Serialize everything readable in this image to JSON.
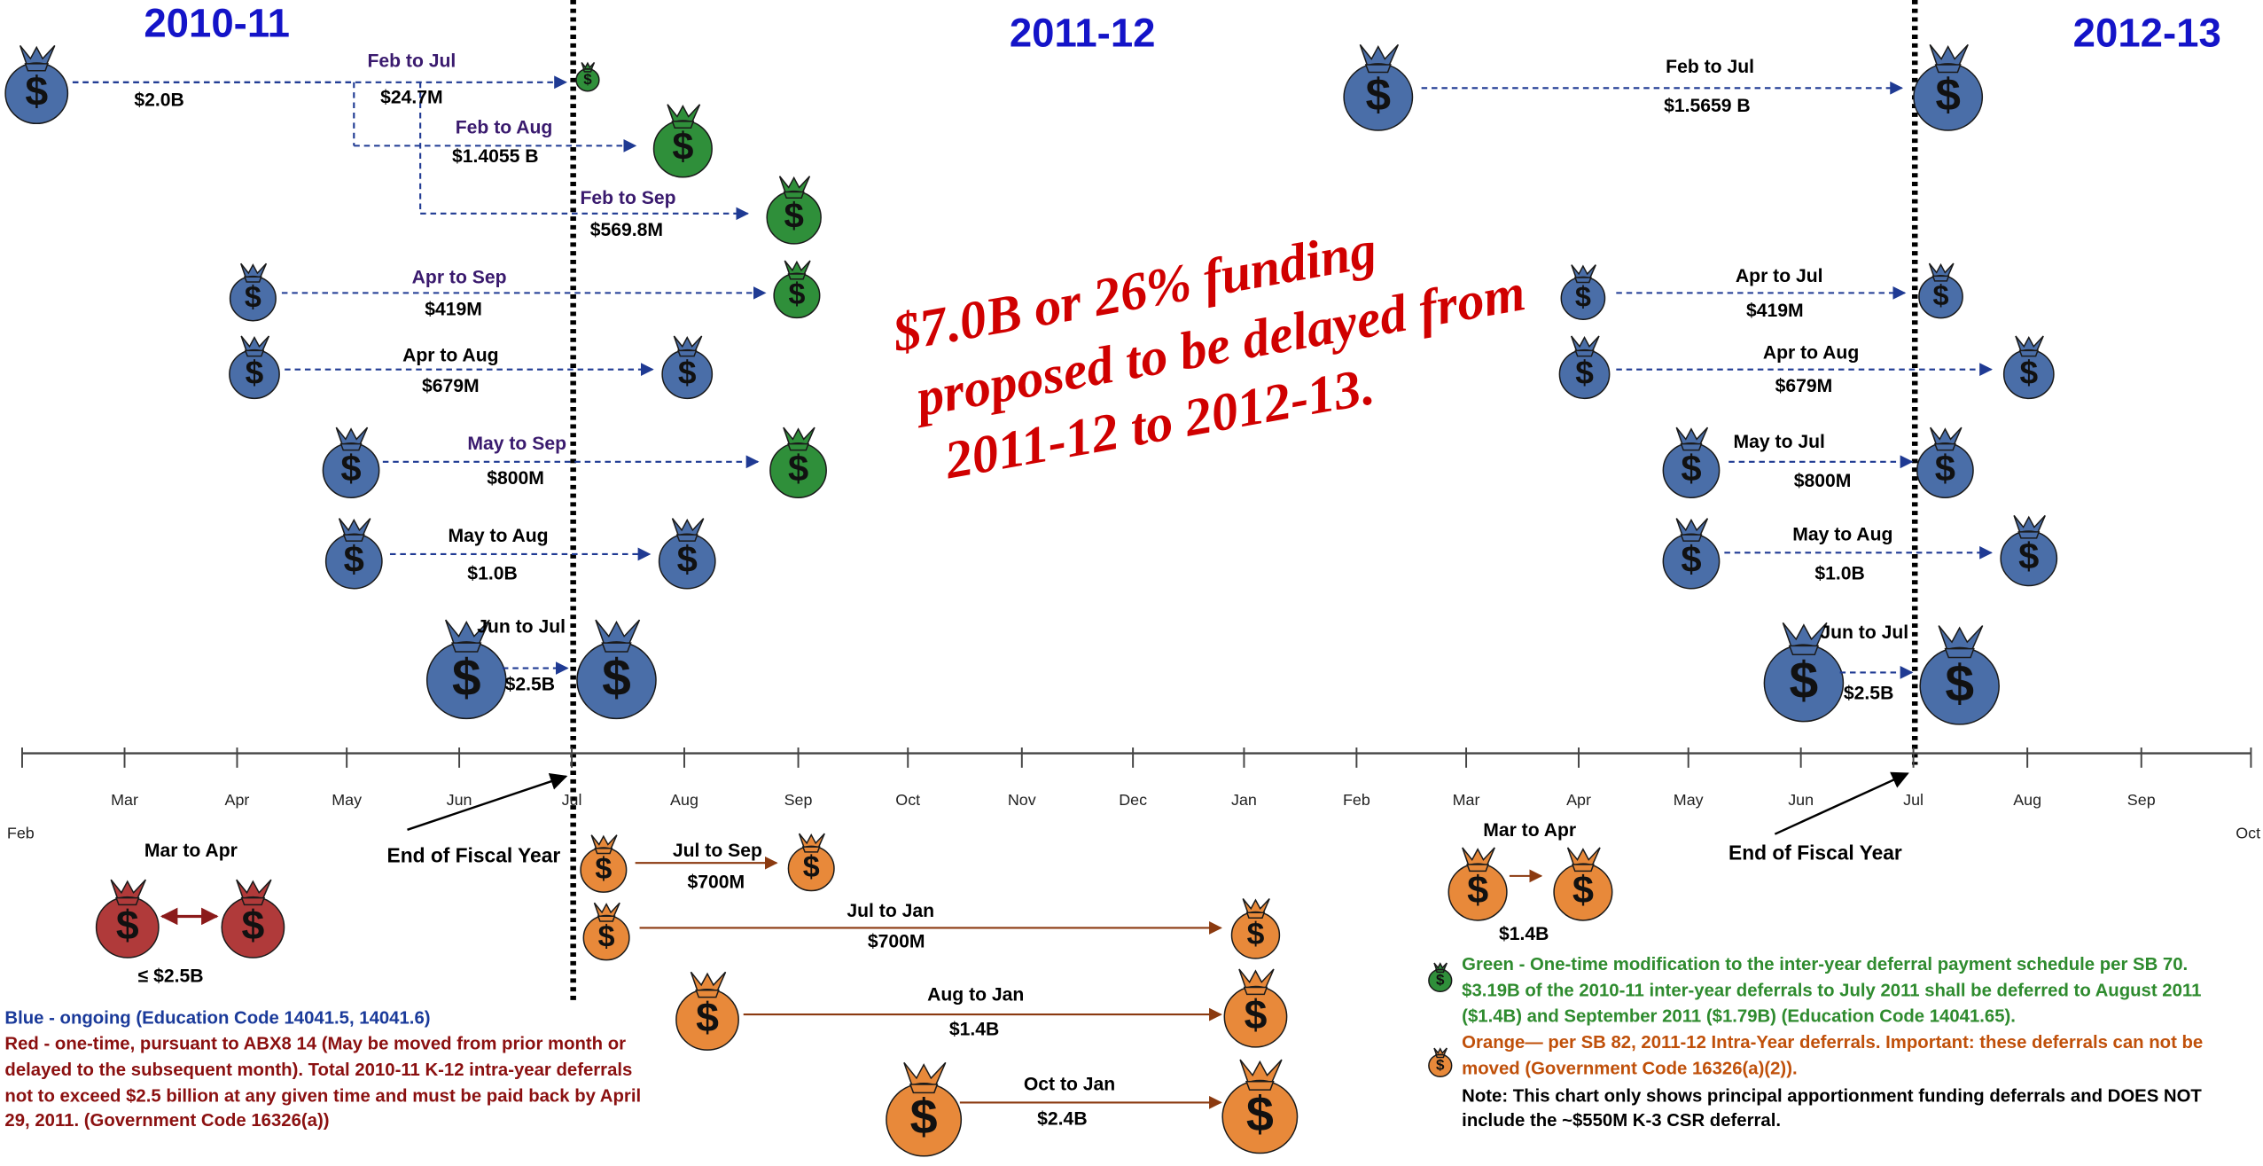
{
  "years": [
    "2010-11",
    "2011-12",
    "2012-13"
  ],
  "months": [
    "Feb",
    "Mar",
    "Apr",
    "May",
    "Jun",
    "Jul",
    "Aug",
    "Sep",
    "Oct",
    "Nov",
    "Dec",
    "Jan",
    "Feb",
    "Mar",
    "Apr",
    "May",
    "Jun",
    "Jul",
    "Aug",
    "Sep",
    "Oct"
  ],
  "headline": [
    "$7.0B or 26% funding",
    "proposed to be delayed from",
    "2011-12 to 2012-13."
  ],
  "bag_symbol": "$",
  "source_amount": "$2.0B",
  "deferrals": [
    {
      "label": "Feb to Jul",
      "amount": "$24.7M"
    },
    {
      "label": "Feb to Aug",
      "amount": "$1.4055 B"
    },
    {
      "label": "Feb to Sep",
      "amount": "$569.8M"
    },
    {
      "label": "Apr to Sep",
      "amount": "$419M"
    },
    {
      "label": "Apr  to Aug",
      "amount": "$679M"
    },
    {
      "label": "May  to Sep",
      "amount": "$800M"
    },
    {
      "label": "May  to Aug",
      "amount": "$1.0B"
    },
    {
      "label": "Jun  to Jul",
      "amount": "$2.5B"
    },
    {
      "label": "Feb  to Jul",
      "amount": "$1.5659 B"
    },
    {
      "label": "Apr to Jul",
      "amount": "$419M"
    },
    {
      "label": "Apr  to Aug",
      "amount": "$679M"
    },
    {
      "label": "May  to Jul",
      "amount": "$800M"
    },
    {
      "label": "May  to Aug",
      "amount": "$1.0B"
    },
    {
      "label": "Jun  to Jul",
      "amount": "$2.5B"
    },
    {
      "label": "Jul to Sep",
      "amount": "$700M"
    },
    {
      "label": "Jul to Jan",
      "amount": "$700M"
    },
    {
      "label": "Aug to Jan",
      "amount": "$1.4B"
    },
    {
      "label": "Oct to Jan",
      "amount": "$2.4B"
    },
    {
      "label": "Mar to Apr",
      "amount": "$1.4B"
    }
  ],
  "red_deferral": {
    "label": "Mar  to Apr",
    "amount": "≤ $2.5B"
  },
  "fiscal_year_end": [
    "End of Fiscal Year",
    "End of Fiscal Year"
  ],
  "notes": {
    "blue": "Blue - ongoing (Education Code 14041.5, 14041.6)",
    "red": [
      "Red - one-time, pursuant to ABX8 14 (May be moved from prior month or",
      "delayed to the subsequent month). Total 2010-11 K-12 intra-year deferrals",
      "not to exceed $2.5 billion at any given time and must be paid back by April",
      "29, 2011. (Government Code 16326(a))"
    ],
    "green": [
      "Green  - One-time modification to the inter-year deferral payment schedule per SB 70.",
      "$3.19B of the 2010-11 inter-year deferrals to July 2011 shall be deferred to August 2011",
      "($1.4B)  and September 2011 ($1.79B) (Education Code 14041.65)."
    ],
    "orange": [
      "Orange— per SB 82, 2011-12 Intra-Year deferrals.  Important: these deferrals can not be",
      "moved (Government Code 16326(a)(2))."
    ],
    "note": [
      "Note:  This chart only shows principal apportionment funding deferrals and DOES NOT",
      "include the ~$550M K-3 CSR deferral."
    ]
  }
}
